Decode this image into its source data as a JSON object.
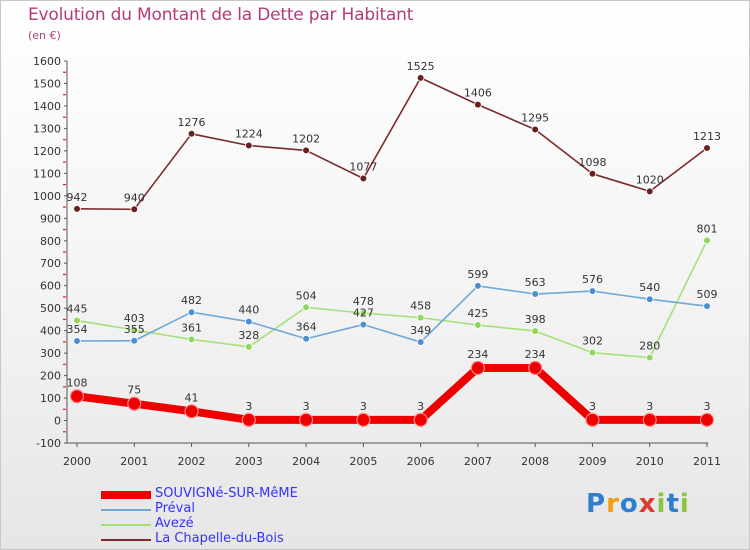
{
  "header": {
    "title": "Evolution du Montant de la Dette par Habitant",
    "unit": "(en €)"
  },
  "logo": {
    "text": "Proxiti",
    "letters": [
      {
        "ch": "P",
        "color": "#2f7fd0"
      },
      {
        "ch": "r",
        "color": "#f39c12"
      },
      {
        "ch": "o",
        "color": "#2f7fd0"
      },
      {
        "ch": "x",
        "color": "#e03a2f"
      },
      {
        "ch": "i",
        "color": "#8cc63f"
      },
      {
        "ch": "t",
        "color": "#2f7fd0"
      },
      {
        "ch": "i",
        "color": "#8cc63f"
      }
    ]
  },
  "chart_data": {
    "type": "line",
    "x": [
      "2000",
      "2001",
      "2002",
      "2003",
      "2004",
      "2005",
      "2006",
      "2007",
      "2008",
      "2009",
      "2010",
      "2011"
    ],
    "ylim": [
      -100,
      1600
    ],
    "yticks": [
      -100,
      0,
      100,
      200,
      300,
      400,
      500,
      600,
      700,
      800,
      900,
      1000,
      1100,
      1200,
      1300,
      1400,
      1500,
      1600
    ],
    "grid": false,
    "legend_position": "bottom-left",
    "series": [
      {
        "name": "SOUVIGNé-SUR-MêME",
        "color": "#ee0000",
        "label_color": "#3333ff",
        "marker_color": "#ee0000",
        "values": [
          108,
          75,
          41,
          3,
          3,
          3,
          3,
          234,
          234,
          3,
          3,
          3
        ]
      },
      {
        "name": "Préval",
        "color": "#6fa8d8",
        "label_color": "#3333ff",
        "marker_color": "#4a8fd0",
        "values": [
          354,
          355,
          482,
          440,
          364,
          427,
          349,
          599,
          563,
          576,
          540,
          509
        ]
      },
      {
        "name": "Avezé",
        "color": "#a6e07a",
        "label_color": "#3333ff",
        "marker_color": "#8fd65a",
        "values": [
          445,
          403,
          361,
          328,
          504,
          478,
          458,
          425,
          398,
          302,
          280,
          801
        ]
      },
      {
        "name": "La Chapelle-du-Bois",
        "color": "#7a2a2a",
        "label_color": "#3333ff",
        "marker_color": "#6a1f1f",
        "values": [
          942,
          940,
          1276,
          1224,
          1202,
          1077,
          1525,
          1406,
          1295,
          1098,
          1020,
          1213
        ]
      }
    ]
  }
}
